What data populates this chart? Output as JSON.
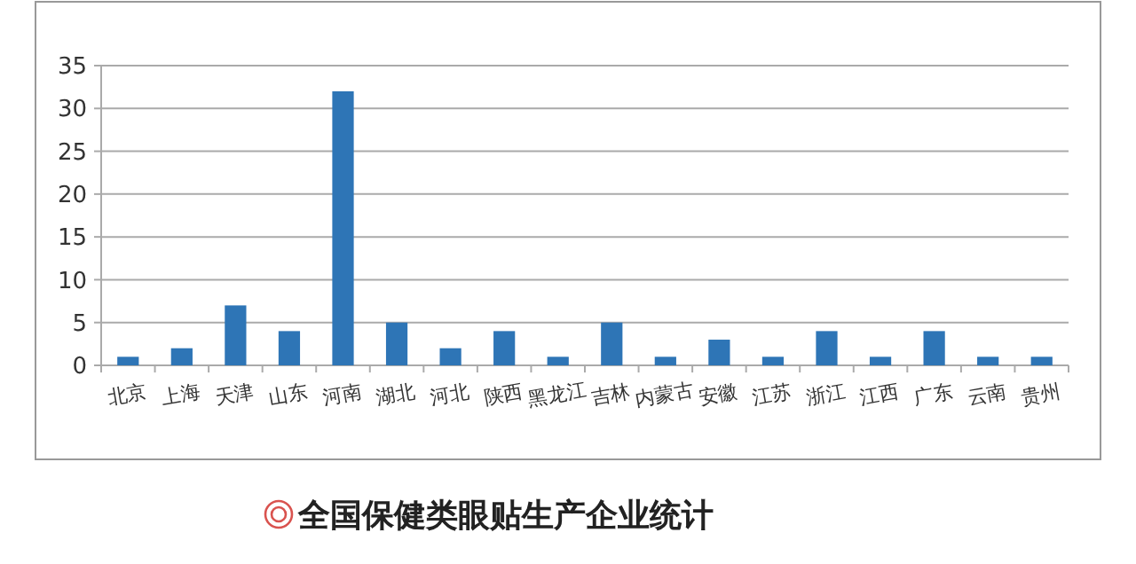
{
  "chart_data": {
    "type": "bar",
    "title": "全国保健类眼贴生产企业统计",
    "categories": [
      "北京",
      "上海",
      "天津",
      "山东",
      "河南",
      "湖北",
      "河北",
      "陕西",
      "黑龙江",
      "吉林",
      "内蒙古",
      "安徽",
      "江苏",
      "浙江",
      "江西",
      "广东",
      "云南",
      "贵州"
    ],
    "values": [
      1,
      2,
      7,
      4,
      32,
      5,
      2,
      4,
      1,
      5,
      1,
      3,
      1,
      4,
      1,
      4,
      1,
      1
    ],
    "color": "#2e75b6",
    "ylim": [
      0,
      35
    ],
    "yticks": [
      0,
      5,
      10,
      15,
      20,
      25,
      30,
      35
    ],
    "grid": "y"
  }
}
